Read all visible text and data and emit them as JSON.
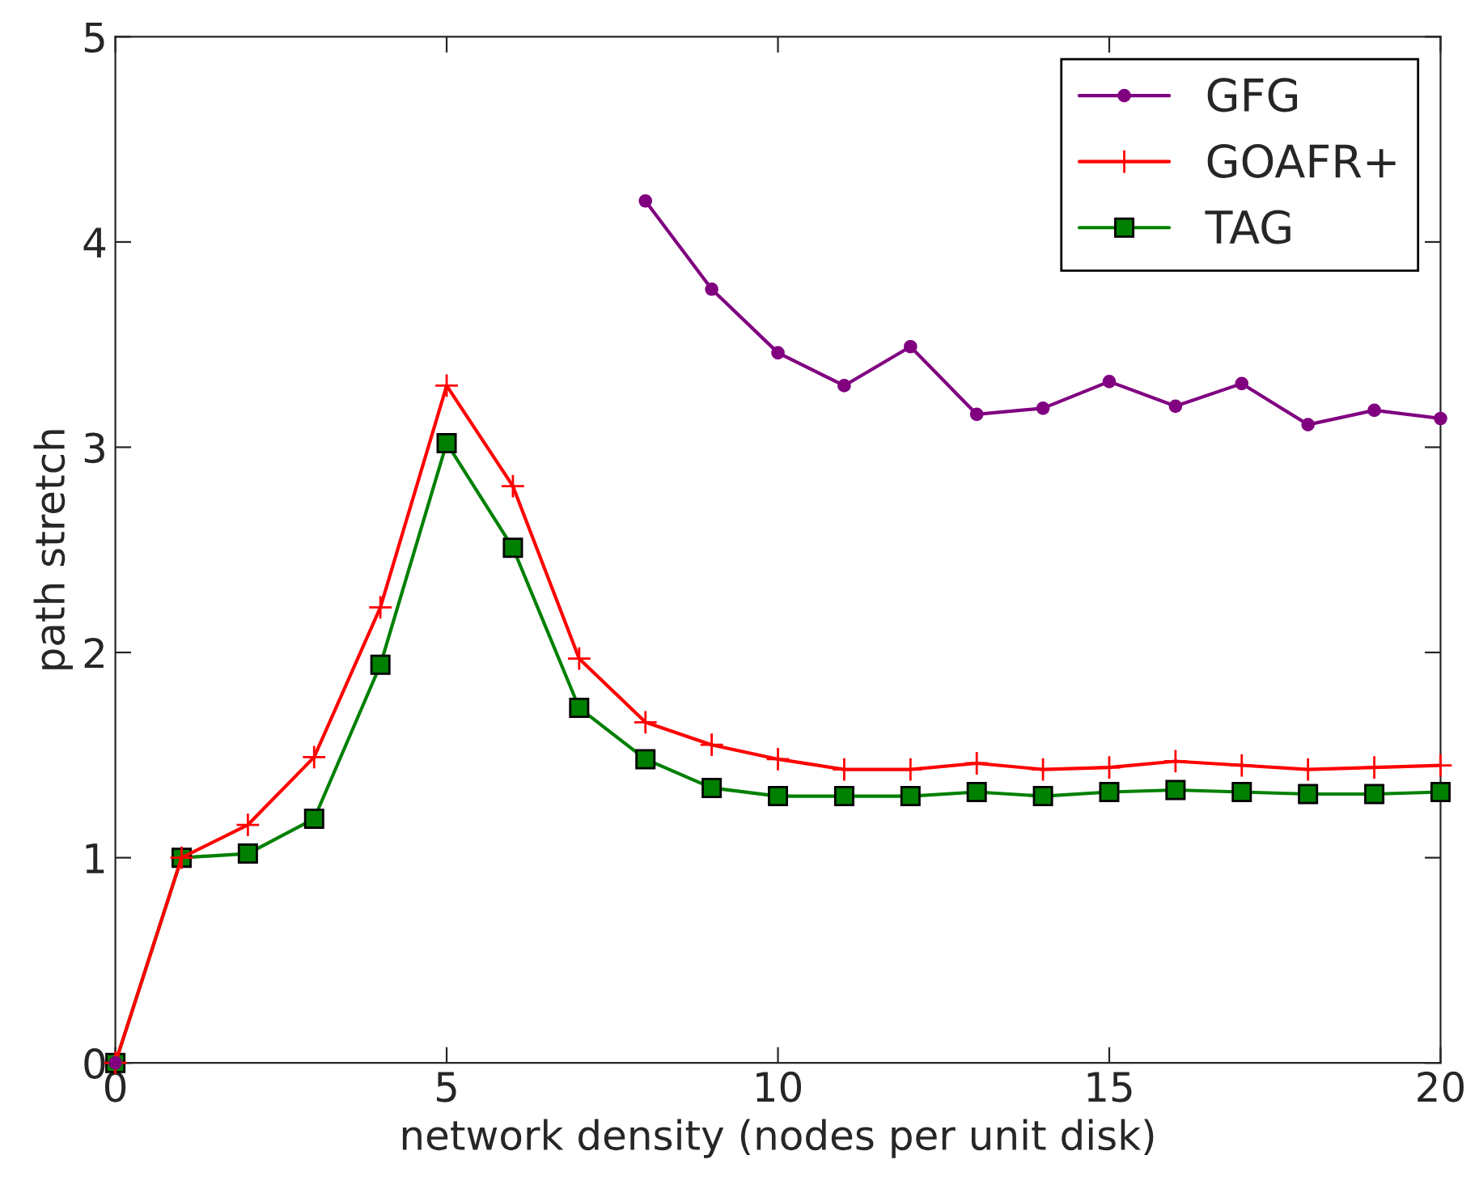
{
  "chart_data": {
    "type": "line",
    "xlabel": "network density (nodes per unit disk)",
    "ylabel": "path stretch",
    "x": [
      0,
      1,
      2,
      3,
      4,
      5,
      6,
      7,
      8,
      9,
      10,
      11,
      12,
      13,
      14,
      15,
      16,
      17,
      18,
      19,
      20
    ],
    "series": [
      {
        "name": "GFG",
        "color": "#800080",
        "marker": "circle",
        "values": [
          0,
          null,
          null,
          null,
          null,
          null,
          null,
          null,
          4.2,
          3.77,
          3.46,
          3.3,
          3.49,
          3.16,
          3.19,
          3.32,
          3.2,
          3.31,
          3.11,
          3.18,
          3.14
        ]
      },
      {
        "name": "GOAFR+",
        "color": "#ff0000",
        "marker": "cross",
        "values": [
          0,
          1.0,
          1.16,
          1.49,
          2.22,
          3.3,
          2.81,
          1.97,
          1.66,
          1.55,
          1.48,
          1.43,
          1.43,
          1.46,
          1.43,
          1.44,
          1.47,
          1.45,
          1.43,
          1.44,
          1.45
        ]
      },
      {
        "name": "TAG",
        "color": "#008000",
        "marker": "square",
        "values": [
          0,
          1.0,
          1.02,
          1.19,
          1.94,
          3.02,
          2.51,
          1.73,
          1.48,
          1.34,
          1.3,
          1.3,
          1.3,
          1.32,
          1.3,
          1.32,
          1.33,
          1.32,
          1.31,
          1.31,
          1.32
        ]
      }
    ],
    "xlim": [
      0,
      20
    ],
    "xticks": [
      0,
      5,
      10,
      15,
      20
    ],
    "ylim": [
      0,
      5
    ],
    "yticks": [
      0,
      1,
      2,
      3,
      4,
      5
    ],
    "legend": "top right",
    "grid": false,
    "line_style": "solid"
  }
}
